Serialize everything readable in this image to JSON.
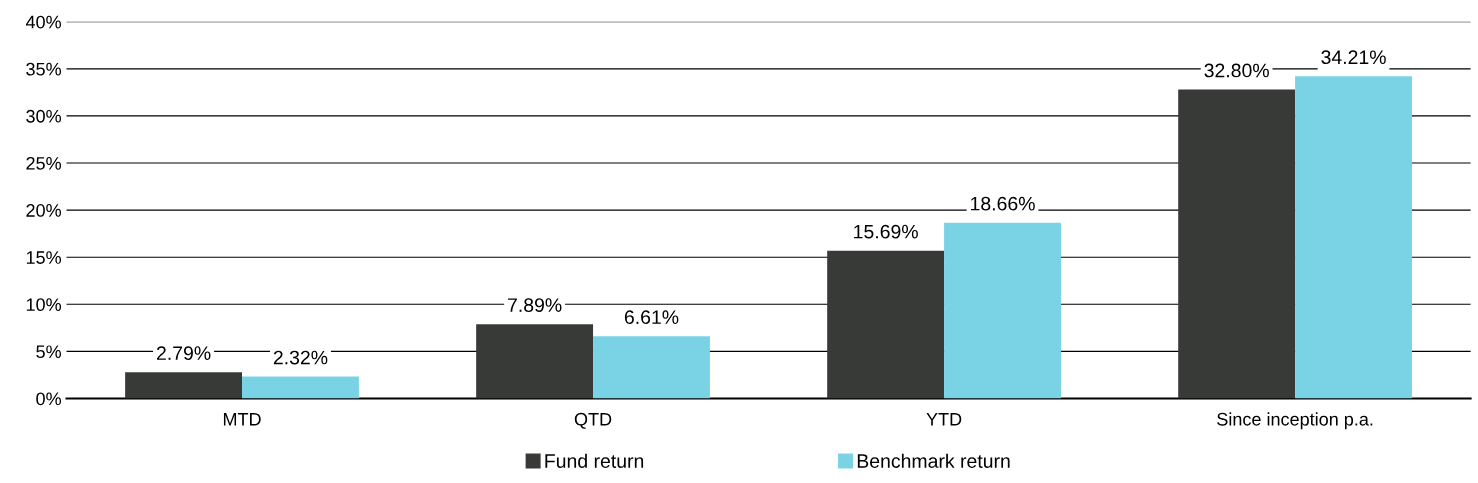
{
  "chart_data": {
    "type": "bar",
    "categories": [
      "MTD",
      "QTD",
      "YTD",
      "Since inception p.a."
    ],
    "series": [
      {
        "name": "Fund return",
        "color": "#383a37",
        "values": [
          2.79,
          7.89,
          15.69,
          32.8
        ],
        "value_labels": [
          "2.79%",
          "7.89%",
          "15.69%",
          "32.80%"
        ]
      },
      {
        "name": "Benchmark return",
        "color": "#7ad3e5",
        "values": [
          2.32,
          6.61,
          18.66,
          34.21
        ],
        "value_labels": [
          "2.32%",
          "6.61%",
          "18.66%",
          "34.21%"
        ]
      }
    ],
    "ylim": [
      0,
      40
    ],
    "yticks": [
      {
        "value": 0,
        "label": "0%"
      },
      {
        "value": 5,
        "label": "5%"
      },
      {
        "value": 10,
        "label": "10%"
      },
      {
        "value": 15,
        "label": "15%"
      },
      {
        "value": 20,
        "label": "20%"
      },
      {
        "value": 25,
        "label": "25%"
      },
      {
        "value": 30,
        "label": "30%"
      },
      {
        "value": 35,
        "label": "35%"
      },
      {
        "value": 40,
        "label": "40%"
      }
    ],
    "grid": "y",
    "legend": "bottom"
  }
}
